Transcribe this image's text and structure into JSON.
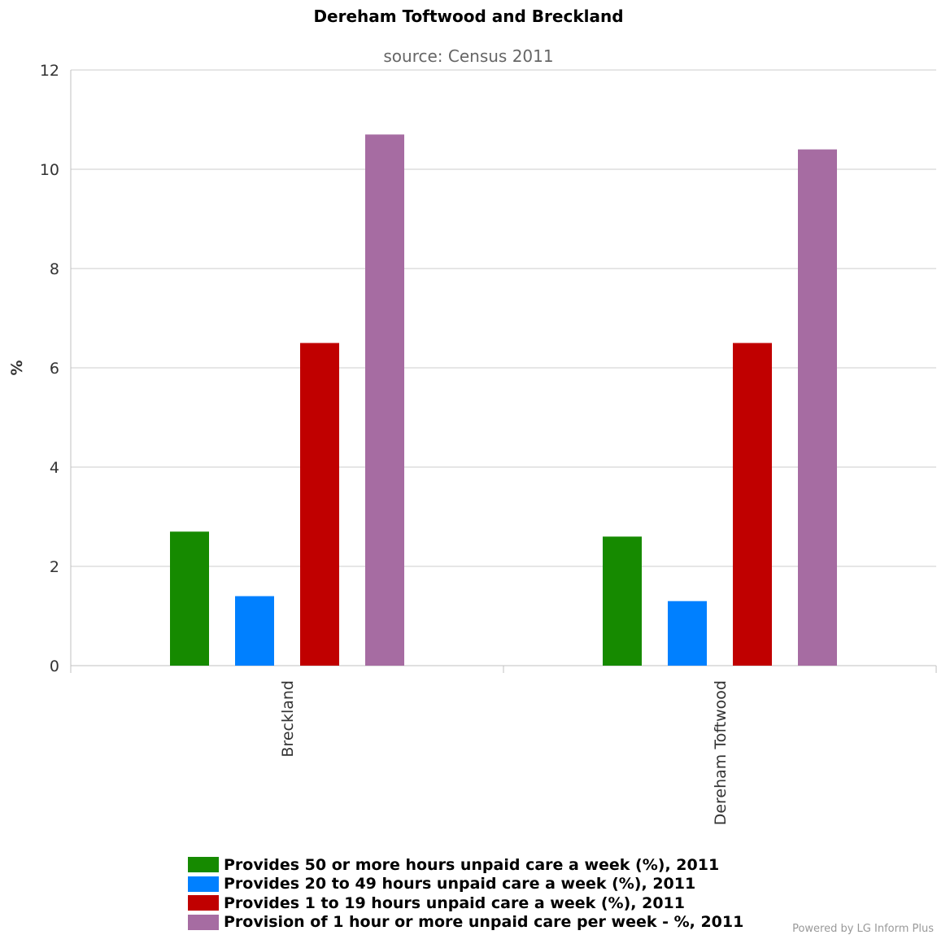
{
  "chart_data": {
    "type": "bar",
    "title": "Dereham Toftwood and Breckland",
    "subtitle": "source: Census 2011",
    "ylabel": "%",
    "xlabel": "",
    "ylim": [
      0,
      12
    ],
    "yticks": [
      0,
      2,
      4,
      6,
      8,
      10,
      12
    ],
    "grid": true,
    "legend_position": "bottom",
    "categories": [
      "Breckland",
      "Dereham Toftwood"
    ],
    "series": [
      {
        "name": "Provides 50 or more hours unpaid care a week (%), 2011",
        "color": "#168a00",
        "values": [
          2.7,
          2.6
        ]
      },
      {
        "name": "Provides 20 to 49 hours unpaid care a week (%), 2011",
        "color": "#0080ff",
        "values": [
          1.4,
          1.3
        ]
      },
      {
        "name": "Provides 1 to 19 hours unpaid care a week (%), 2011",
        "color": "#c00000",
        "values": [
          6.5,
          6.5
        ]
      },
      {
        "name": "Provision of 1 hour or more unpaid care per week - %, 2011",
        "color": "#a66ca2",
        "values": [
          10.7,
          10.4
        ]
      }
    ]
  },
  "credit": "Powered by LG Inform Plus"
}
